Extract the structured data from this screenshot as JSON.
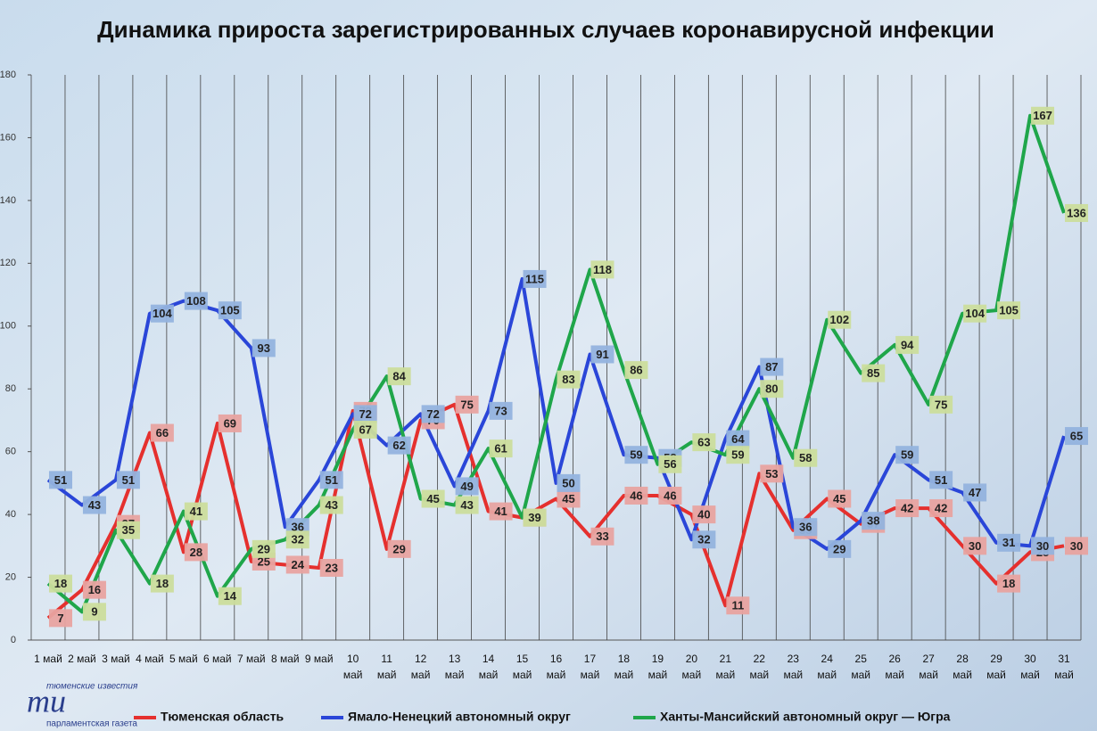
{
  "chart_data": {
    "type": "line",
    "title": "Динамика прироста зарегистрированных случаев коронавирусной инфекции",
    "categories": [
      "1 май",
      "2 май",
      "3 май",
      "4 май",
      "5 май",
      "6 май",
      "7 май",
      "8 май",
      "9 май",
      "10 май",
      "11 май",
      "12 май",
      "13 май",
      "14 май",
      "15 май",
      "16 май",
      "17 май",
      "18 май",
      "19 май",
      "20 май",
      "21 май",
      "22 май",
      "23 май",
      "24 май",
      "25 май",
      "26 май",
      "27 май",
      "28 май",
      "29 май",
      "30 май",
      "31 май"
    ],
    "series": [
      {
        "name": "Тюменская область",
        "color": "#e5302e",
        "label_color": "#e8a3a0",
        "values": [
          7,
          16,
          37,
          66,
          28,
          69,
          25,
          24,
          23,
          73,
          29,
          70,
          75,
          41,
          39,
          45,
          33,
          46,
          46,
          40,
          11,
          53,
          35,
          45,
          37,
          42,
          42,
          30,
          18,
          28,
          30
        ]
      },
      {
        "name": "Ямало-Ненецкий автономный округ",
        "color": "#2a46d8",
        "label_color": "#93b3de",
        "values": [
          51,
          43,
          51,
          104,
          108,
          105,
          93,
          36,
          51,
          72,
          62,
          72,
          49,
          73,
          115,
          50,
          91,
          59,
          58,
          32,
          64,
          87,
          36,
          29,
          38,
          59,
          51,
          47,
          31,
          30,
          65
        ]
      },
      {
        "name": "Ханты-Мансийский автономный округ — Югра",
        "color": "#1fa64a",
        "label_color": "#cbdd9c",
        "values": [
          18,
          9,
          35,
          18,
          41,
          14,
          29,
          32,
          43,
          67,
          84,
          45,
          43,
          61,
          39,
          83,
          118,
          86,
          56,
          63,
          59,
          80,
          58,
          102,
          85,
          94,
          75,
          104,
          105,
          167,
          136
        ]
      }
    ],
    "ylim": [
      0,
      180
    ],
    "yticks": [
      0,
      20,
      40,
      60,
      80,
      100,
      120,
      140,
      160,
      180
    ],
    "grid": true,
    "legend": "bottom",
    "logo": {
      "top": "тюменские известия",
      "mark": "ти",
      "bottom": "парламентская газета"
    }
  }
}
